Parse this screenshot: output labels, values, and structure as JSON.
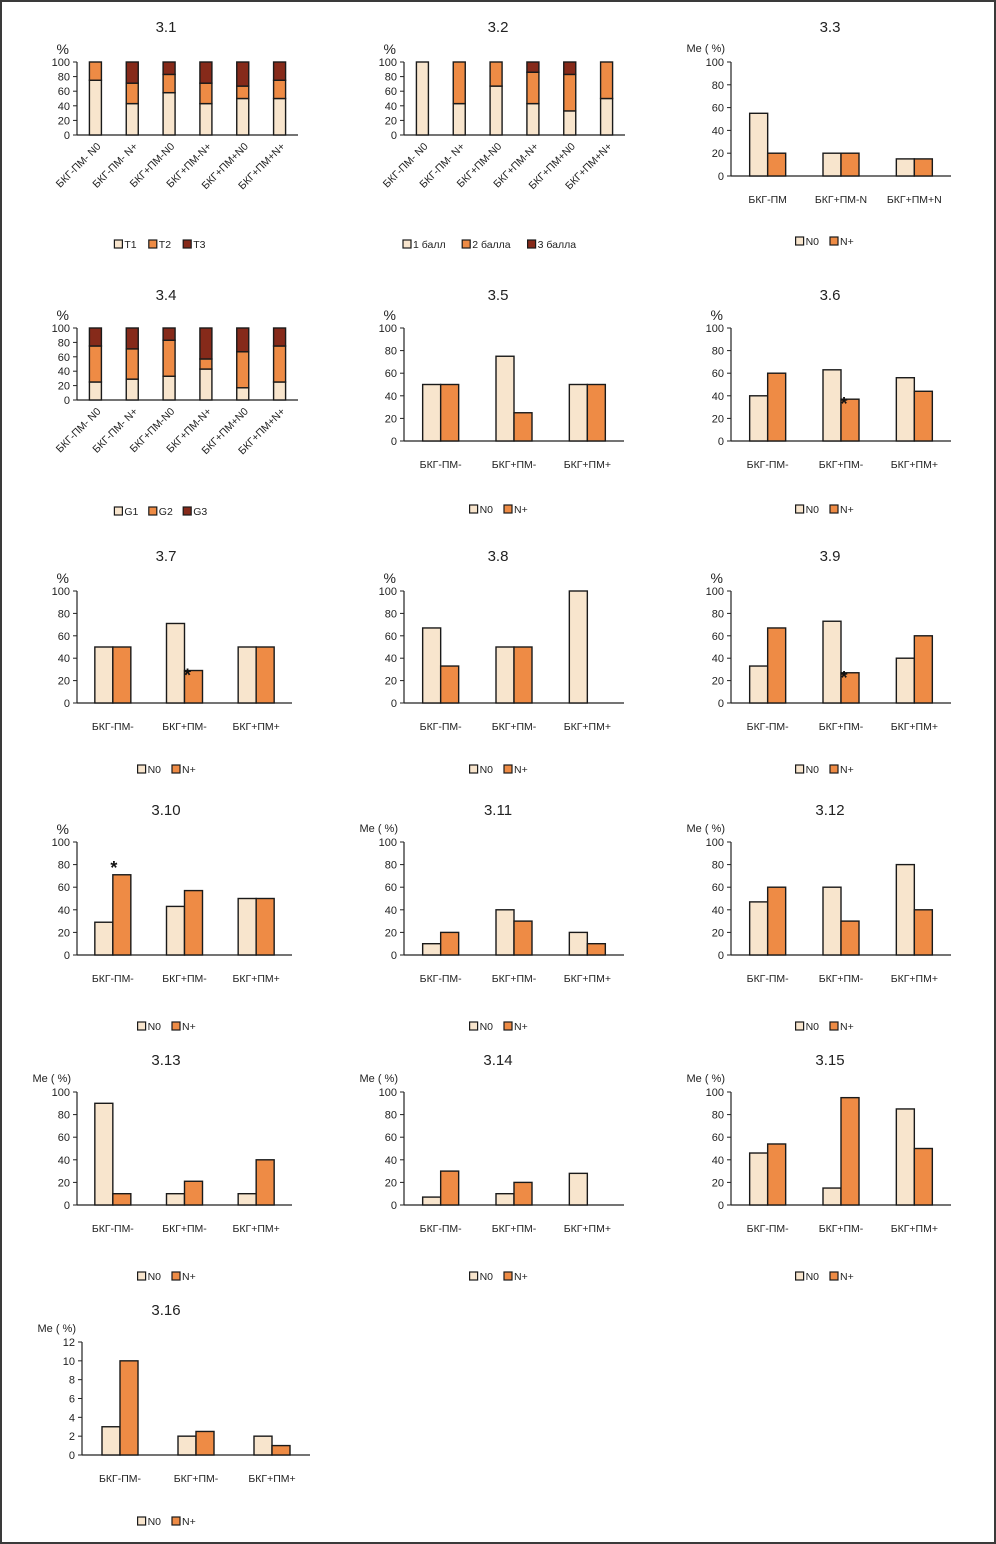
{
  "colors": {
    "light": "#F8E5CD",
    "orange": "#EE8B45",
    "dark": "#862A1A",
    "outline": "#1a1a1a"
  },
  "chart_data": [
    {
      "id": "3.1",
      "type": "bar",
      "stacked": true,
      "title": "3.1",
      "ylabel": "%",
      "ylim": [
        0,
        100
      ],
      "yticks": [
        0,
        20,
        40,
        60,
        80,
        100
      ],
      "categories": [
        "БКГ-ПМ- N0",
        "БКГ-ПМ- N+",
        "БКГ+ПМ-N0",
        "БКГ+ПМ-N+",
        "БКГ+ПМ+N0",
        "БКГ+ПМ+N+"
      ],
      "rotated_labels": true,
      "series": [
        {
          "name": "T1",
          "color": "light",
          "values": [
            75,
            43,
            58,
            43,
            50,
            50
          ]
        },
        {
          "name": "T2",
          "color": "orange",
          "values": [
            25,
            28,
            25,
            28,
            17,
            25
          ]
        },
        {
          "name": "T3",
          "color": "dark",
          "values": [
            0,
            29,
            17,
            29,
            33,
            25
          ]
        }
      ],
      "legend": "bottom"
    },
    {
      "id": "3.2",
      "type": "bar",
      "stacked": true,
      "title": "3.2",
      "ylabel": "%",
      "ylim": [
        0,
        100
      ],
      "yticks": [
        0,
        20,
        40,
        60,
        80,
        100
      ],
      "categories": [
        "БКГ-ПМ- N0",
        "БКГ-ПМ- N+",
        "БКГ+ПМ-N0",
        "БКГ+ПМ-N+",
        "БКГ+ПМ+N0",
        "БКГ+ПМ+N+"
      ],
      "rotated_labels": true,
      "series": [
        {
          "name": "1 балл",
          "color": "light",
          "values": [
            100,
            43,
            67,
            43,
            33,
            50
          ]
        },
        {
          "name": "2 балла",
          "color": "orange",
          "values": [
            0,
            57,
            33,
            43,
            50,
            50
          ]
        },
        {
          "name": "3 балла",
          "color": "dark",
          "values": [
            0,
            0,
            0,
            14,
            17,
            0
          ]
        }
      ],
      "legend": "bottom"
    },
    {
      "id": "3.3",
      "type": "bar",
      "title": "3.3",
      "ylabel": "Me ( %)",
      "ylim": [
        0,
        100
      ],
      "yticks": [
        0,
        20,
        40,
        60,
        80,
        100
      ],
      "categories": [
        "БКГ-ПМ",
        "БКГ+ПМ-N",
        "БКГ+ПМ+N"
      ],
      "series": [
        {
          "name": "N0",
          "color": "light",
          "values": [
            55,
            20,
            15
          ]
        },
        {
          "name": "N+",
          "color": "orange",
          "values": [
            20,
            20,
            15
          ]
        }
      ],
      "legend": "bottom"
    },
    {
      "id": "3.4",
      "type": "bar",
      "stacked": true,
      "title": "3.4",
      "ylabel": "%",
      "ylim": [
        0,
        100
      ],
      "yticks": [
        0,
        20,
        40,
        60,
        80,
        100
      ],
      "categories": [
        "БКГ-ПМ- N0",
        "БКГ-ПМ- N+",
        "БКГ+ПМ-N0",
        "БКГ+ПМ-N+",
        "БКГ+ПМ+N0",
        "БКГ+ПМ+N+"
      ],
      "rotated_labels": true,
      "series": [
        {
          "name": "G1",
          "color": "light",
          "values": [
            25,
            29,
            33,
            43,
            17,
            25
          ]
        },
        {
          "name": "G2",
          "color": "orange",
          "values": [
            50,
            42,
            50,
            14,
            50,
            50
          ]
        },
        {
          "name": "G3",
          "color": "dark",
          "values": [
            25,
            29,
            17,
            43,
            33,
            25
          ]
        }
      ],
      "legend": "bottom"
    },
    {
      "id": "3.5",
      "type": "bar",
      "title": "3.5",
      "ylabel": "%",
      "ylim": [
        0,
        100
      ],
      "yticks": [
        0,
        20,
        40,
        60,
        80,
        100
      ],
      "categories": [
        "БКГ-ПМ-",
        "БКГ+ПМ-",
        "БКГ+ПМ+"
      ],
      "series": [
        {
          "name": "N0",
          "color": "light",
          "values": [
            50,
            75,
            50
          ]
        },
        {
          "name": "N+",
          "color": "orange",
          "values": [
            50,
            25,
            50
          ]
        }
      ],
      "legend": "bottom"
    },
    {
      "id": "3.6",
      "type": "bar",
      "title": "3.6",
      "ylabel": "%",
      "ylim": [
        0,
        100
      ],
      "yticks": [
        0,
        20,
        40,
        60,
        80,
        100
      ],
      "categories": [
        "БКГ-ПМ-",
        "БКГ+ПМ-",
        "БКГ+ПМ+"
      ],
      "series": [
        {
          "name": "N0",
          "color": "light",
          "values": [
            40,
            63,
            56
          ]
        },
        {
          "name": "N+",
          "color": "orange",
          "values": [
            60,
            37,
            44
          ]
        }
      ],
      "annotations": [
        {
          "text": "*",
          "category": 1,
          "series": 1,
          "position": "inside-left"
        }
      ],
      "legend": "bottom"
    },
    {
      "id": "3.7",
      "type": "bar",
      "title": "3.7",
      "ylabel": "%",
      "ylim": [
        0,
        100
      ],
      "yticks": [
        0,
        20,
        40,
        60,
        80,
        100
      ],
      "categories": [
        "БКГ-ПМ-",
        "БКГ+ПМ-",
        "БКГ+ПМ+"
      ],
      "series": [
        {
          "name": "N0",
          "color": "light",
          "values": [
            50,
            71,
            50
          ]
        },
        {
          "name": "N+",
          "color": "orange",
          "values": [
            50,
            29,
            50
          ]
        }
      ],
      "annotations": [
        {
          "text": "*",
          "category": 1,
          "series": 1,
          "position": "inside-left"
        }
      ],
      "legend": "bottom"
    },
    {
      "id": "3.8",
      "type": "bar",
      "title": "3.8",
      "ylabel": "%",
      "ylim": [
        0,
        100
      ],
      "yticks": [
        0,
        20,
        40,
        60,
        80,
        100
      ],
      "categories": [
        "БКГ-ПМ-",
        "БКГ+ПМ-",
        "БКГ+ПМ+"
      ],
      "series": [
        {
          "name": "N0",
          "color": "light",
          "values": [
            67,
            50,
            100
          ]
        },
        {
          "name": "N+",
          "color": "orange",
          "values": [
            33,
            50,
            0
          ]
        }
      ],
      "legend": "bottom"
    },
    {
      "id": "3.9",
      "type": "bar",
      "title": "3.9",
      "ylabel": "%",
      "ylim": [
        0,
        100
      ],
      "yticks": [
        0,
        20,
        40,
        60,
        80,
        100
      ],
      "categories": [
        "БКГ-ПМ-",
        "БКГ+ПМ-",
        "БКГ+ПМ+"
      ],
      "series": [
        {
          "name": "N0",
          "color": "light",
          "values": [
            33,
            73,
            40
          ]
        },
        {
          "name": "N+",
          "color": "orange",
          "values": [
            67,
            27,
            60
          ]
        }
      ],
      "annotations": [
        {
          "text": "*",
          "category": 1,
          "series": 1,
          "position": "inside-left"
        }
      ],
      "legend": "bottom"
    },
    {
      "id": "3.10",
      "type": "bar",
      "title": "3.10",
      "ylabel": "%",
      "ylim": [
        0,
        100
      ],
      "yticks": [
        0,
        20,
        40,
        60,
        80,
        100
      ],
      "categories": [
        "БКГ-ПМ-",
        "БКГ+ПМ-",
        "БКГ+ПМ+"
      ],
      "series": [
        {
          "name": "N0",
          "color": "light",
          "values": [
            29,
            43,
            50
          ]
        },
        {
          "name": "N+",
          "color": "orange",
          "values": [
            71,
            57,
            50
          ]
        }
      ],
      "annotations": [
        {
          "text": "*",
          "category": 0,
          "series": 1,
          "position": "above"
        }
      ],
      "legend": "bottom"
    },
    {
      "id": "3.11",
      "type": "bar",
      "title": "3.11",
      "ylabel": "Me ( %)",
      "ylim": [
        0,
        100
      ],
      "yticks": [
        0,
        20,
        40,
        60,
        80,
        100
      ],
      "categories": [
        "БКГ-ПМ-",
        "БКГ+ПМ-",
        "БКГ+ПМ+"
      ],
      "series": [
        {
          "name": "N0",
          "color": "light",
          "values": [
            10,
            40,
            20
          ]
        },
        {
          "name": "N+",
          "color": "orange",
          "values": [
            20,
            30,
            10
          ]
        }
      ],
      "legend": "bottom"
    },
    {
      "id": "3.12",
      "type": "bar",
      "title": "3.12",
      "ylabel": "Me ( %)",
      "ylim": [
        0,
        100
      ],
      "yticks": [
        0,
        20,
        40,
        60,
        80,
        100
      ],
      "categories": [
        "БКГ-ПМ-",
        "БКГ+ПМ-",
        "БКГ+ПМ+"
      ],
      "series": [
        {
          "name": "N0",
          "color": "light",
          "values": [
            47,
            60,
            80
          ]
        },
        {
          "name": "N+",
          "color": "orange",
          "values": [
            60,
            30,
            40
          ]
        }
      ],
      "legend": "bottom"
    },
    {
      "id": "3.13",
      "type": "bar",
      "title": "3.13",
      "ylabel": "Me ( %)",
      "ylim": [
        0,
        100
      ],
      "yticks": [
        0,
        20,
        40,
        60,
        80,
        100
      ],
      "categories": [
        "БКГ-ПМ-",
        "БКГ+ПМ-",
        "БКГ+ПМ+"
      ],
      "series": [
        {
          "name": "N0",
          "color": "light",
          "values": [
            90,
            10,
            10
          ]
        },
        {
          "name": "N+",
          "color": "orange",
          "values": [
            10,
            21,
            40
          ]
        }
      ],
      "legend": "bottom"
    },
    {
      "id": "3.14",
      "type": "bar",
      "title": "3.14",
      "ylabel": "Me ( %)",
      "ylim": [
        0,
        100
      ],
      "yticks": [
        0,
        20,
        40,
        60,
        80,
        100
      ],
      "categories": [
        "БКГ-ПМ-",
        "БКГ+ПМ-",
        "БКГ+ПМ+"
      ],
      "series": [
        {
          "name": "N0",
          "color": "light",
          "values": [
            7,
            10,
            28
          ]
        },
        {
          "name": "N+",
          "color": "orange",
          "values": [
            30,
            20,
            0
          ]
        }
      ],
      "legend": "bottom"
    },
    {
      "id": "3.15",
      "type": "bar",
      "title": "3.15",
      "ylabel": "Me ( %)",
      "ylim": [
        0,
        100
      ],
      "yticks": [
        0,
        20,
        40,
        60,
        80,
        100
      ],
      "categories": [
        "БКГ-ПМ-",
        "БКГ+ПМ-",
        "БКГ+ПМ+"
      ],
      "series": [
        {
          "name": "N0",
          "color": "light",
          "values": [
            46,
            15,
            85
          ]
        },
        {
          "name": "N+",
          "color": "orange",
          "values": [
            54,
            95,
            50
          ]
        }
      ],
      "legend": "bottom"
    },
    {
      "id": "3.16",
      "type": "bar",
      "title": "3.16",
      "ylabel": "Me ( %)",
      "ylim": [
        0,
        12
      ],
      "yticks": [
        0,
        2,
        4,
        6,
        8,
        10,
        12
      ],
      "categories": [
        "БКГ-ПМ-",
        "БКГ+ПМ-",
        "БКГ+ПМ+"
      ],
      "series": [
        {
          "name": "N0",
          "color": "light",
          "values": [
            3,
            2,
            2
          ]
        },
        {
          "name": "N+",
          "color": "orange",
          "values": [
            10,
            2.5,
            1
          ]
        }
      ],
      "legend": "bottom"
    }
  ]
}
